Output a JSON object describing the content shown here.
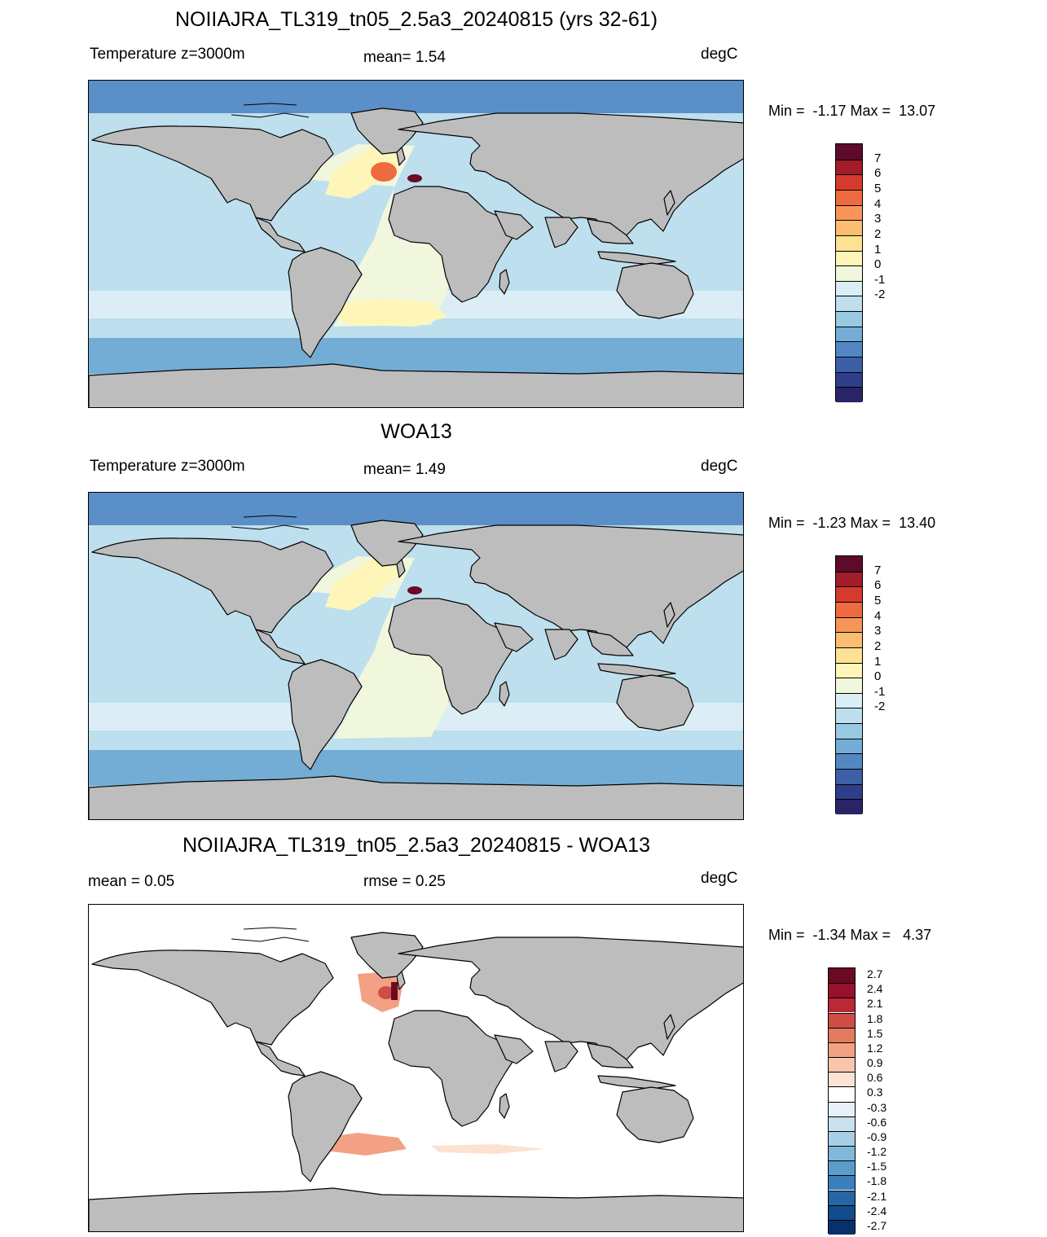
{
  "panels": [
    {
      "title": "NOIIAJRA_TL319_tn05_2.5a3_20240815 (yrs 32-61)",
      "left_label": "Temperature z=3000m",
      "center_label": "mean=   1.54",
      "units": "degC",
      "minmax": "Min =  -1.17 Max =  13.07"
    },
    {
      "title": "WOA13",
      "left_label": "Temperature z=3000m",
      "center_label": "mean=   1.49",
      "units": "degC",
      "minmax": "Min =  -1.23 Max =  13.40"
    },
    {
      "title": "NOIIAJRA_TL319_tn05_2.5a3_20240815 - WOA13",
      "left_label": "mean =   0.05",
      "center_label": "rmse =   0.25",
      "units": "degC",
      "minmax": "Min =  -1.34 Max =   4.37"
    }
  ],
  "colorbars": {
    "temperature": {
      "colors": [
        "#5e0a2a",
        "#a11d2b",
        "#d53a2e",
        "#ee6a3f",
        "#f7945a",
        "#fbbd72",
        "#fde294",
        "#fef6b8",
        "#f1f7dc",
        "#dbeef6",
        "#bddfee",
        "#98c9e2",
        "#73add6",
        "#5287c2",
        "#3d5fa8",
        "#2e3e8b",
        "#2a2466"
      ],
      "labels": [
        "7",
        "6",
        "5",
        "4",
        "3",
        "2",
        "1",
        "0",
        "-1",
        "-2"
      ]
    },
    "difference": {
      "colors": [
        "#6b0a22",
        "#99102d",
        "#bb2837",
        "#cf4d44",
        "#e27a5e",
        "#f2a184",
        "#f8c5aa",
        "#fde1d1",
        "#ffffff",
        "#e6f1f7",
        "#c9e1ef",
        "#a8cfe6",
        "#81b8d9",
        "#5a9dcb",
        "#3b80bb",
        "#2566a6",
        "#114c8c",
        "#08306b"
      ],
      "labels": [
        "2.7",
        "2.4",
        "2.1",
        "1.8",
        "1.5",
        "1.2",
        "0.9",
        "0.6",
        "0.3",
        "-0.3",
        "-0.6",
        "-0.9",
        "-1.2",
        "-1.5",
        "-1.8",
        "-2.1",
        "-2.4",
        "-2.7"
      ]
    }
  },
  "map_colors": {
    "land": "#bdbdbd",
    "coast": "#000000",
    "arctic": "#5b8fc7",
    "deep_cold": "#73add6",
    "ocean": "#bddfee",
    "ocean_light": "#dbeef6",
    "atlantic_warm": "#f1f7dc",
    "atlantic_yellow": "#fef6b8",
    "medit": "#ee6a3f",
    "medit_core": "#6b0a22",
    "diff_zero": "#ffffff",
    "diff_pos": "#f2a184",
    "diff_pos_strong": "#cf4d44"
  }
}
